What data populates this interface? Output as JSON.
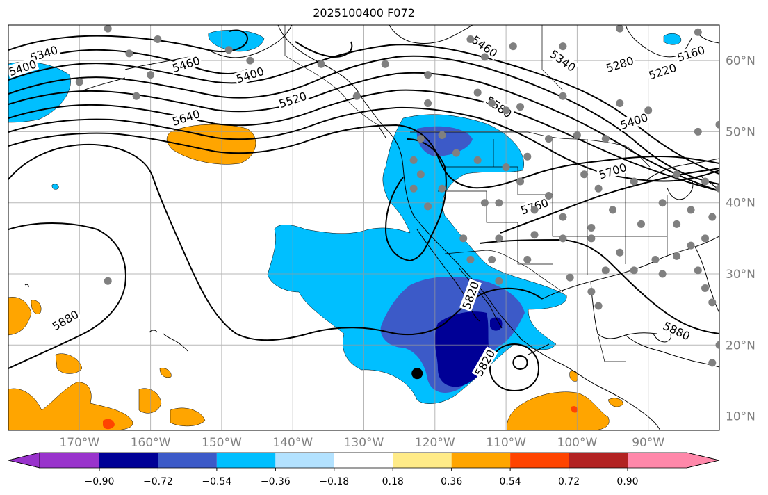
{
  "title": "2025100400 F072",
  "map": {
    "extent": {
      "lon_min": -180,
      "lon_max": -80,
      "lat_min": 8,
      "lat_max": 65
    },
    "projection": "PlateCarree",
    "gridlines": true,
    "lon_ticks": [
      {
        "value": -170,
        "label": "170°W"
      },
      {
        "value": -160,
        "label": "160°W"
      },
      {
        "value": -150,
        "label": "150°W"
      },
      {
        "value": -140,
        "label": "140°W"
      },
      {
        "value": -130,
        "label": "130°W"
      },
      {
        "value": -120,
        "label": "120°W"
      },
      {
        "value": -110,
        "label": "110°W"
      },
      {
        "value": -100,
        "label": "100°W"
      },
      {
        "value": -90,
        "label": "90°W"
      }
    ],
    "lat_ticks": [
      {
        "value": 60,
        "label": "60°N"
      },
      {
        "value": 50,
        "label": "50°N"
      },
      {
        "value": 40,
        "label": "40°N"
      },
      {
        "value": 30,
        "label": "30°N"
      },
      {
        "value": 20,
        "label": "20°N"
      },
      {
        "value": 10,
        "label": "10°N"
      }
    ],
    "contour_labels": [
      {
        "text": "5340",
        "lon": -175,
        "lat": 61
      },
      {
        "text": "5400",
        "lon": -178,
        "lat": 59
      },
      {
        "text": "5460",
        "lon": -155,
        "lat": 59.5
      },
      {
        "text": "5400",
        "lon": -146,
        "lat": 58
      },
      {
        "text": "5520",
        "lon": -140,
        "lat": 54.5
      },
      {
        "text": "5640",
        "lon": -155,
        "lat": 52
      },
      {
        "text": "5460",
        "lon": -113,
        "lat": 62
      },
      {
        "text": "5340",
        "lon": -102,
        "lat": 60
      },
      {
        "text": "5280",
        "lon": -94,
        "lat": 59.5
      },
      {
        "text": "5220",
        "lon": -88,
        "lat": 58.5
      },
      {
        "text": "5160",
        "lon": -84,
        "lat": 61
      },
      {
        "text": "5580",
        "lon": -111,
        "lat": 53.5
      },
      {
        "text": "5400",
        "lon": -92,
        "lat": 51.5
      },
      {
        "text": "5700",
        "lon": -95,
        "lat": 44.5
      },
      {
        "text": "5760",
        "lon": -106,
        "lat": 39.5
      },
      {
        "text": "5880",
        "lon": -172,
        "lat": 23.5
      },
      {
        "text": "5880",
        "lon": -86,
        "lat": 22
      },
      {
        "text": "5820",
        "lon": -113,
        "lat": 17.5
      },
      {
        "text": "5820",
        "lon": -115,
        "lat": 27
      }
    ],
    "station_points": [
      [
        -166,
        64.5
      ],
      [
        -159,
        63
      ],
      [
        -163,
        61
      ],
      [
        -149,
        61.5
      ],
      [
        -146,
        60
      ],
      [
        -160,
        58
      ],
      [
        -170,
        57
      ],
      [
        -162,
        55
      ],
      [
        -136,
        59.5
      ],
      [
        -127,
        59.5
      ],
      [
        -121,
        58
      ],
      [
        -131,
        55
      ],
      [
        -121,
        54
      ],
      [
        -115,
        63
      ],
      [
        -109,
        62
      ],
      [
        -102,
        62
      ],
      [
        -94,
        64.5
      ],
      [
        -83,
        64
      ],
      [
        -113,
        60.5
      ],
      [
        -114,
        55.5
      ],
      [
        -112,
        54
      ],
      [
        -110,
        53
      ],
      [
        -108,
        53.5
      ],
      [
        -104,
        49
      ],
      [
        -102,
        55
      ],
      [
        -100,
        49.5
      ],
      [
        -96,
        49
      ],
      [
        -94,
        54
      ],
      [
        -90,
        53
      ],
      [
        -83,
        50
      ],
      [
        -80,
        51
      ],
      [
        -122,
        49
      ],
      [
        -119,
        49.5
      ],
      [
        -123,
        46
      ],
      [
        -122,
        44
      ],
      [
        -123,
        42
      ],
      [
        -121,
        39.5
      ],
      [
        -119,
        42
      ],
      [
        -117,
        47
      ],
      [
        -114,
        46
      ],
      [
        -110,
        45
      ],
      [
        -107,
        46.5
      ],
      [
        -108,
        43
      ],
      [
        -104,
        41
      ],
      [
        -99,
        44
      ],
      [
        -97,
        42
      ],
      [
        -92,
        43
      ],
      [
        -86,
        44
      ],
      [
        -82,
        43
      ],
      [
        -88,
        40
      ],
      [
        -84,
        39
      ],
      [
        -80,
        42
      ],
      [
        -113,
        40
      ],
      [
        -111,
        40
      ],
      [
        -106,
        39
      ],
      [
        -102,
        38
      ],
      [
        -98,
        36.5
      ],
      [
        -95,
        39
      ],
      [
        -91,
        37
      ],
      [
        -86,
        37
      ],
      [
        -84,
        34
      ],
      [
        -82,
        35
      ],
      [
        -81,
        38
      ],
      [
        -116,
        35
      ],
      [
        -111,
        35
      ],
      [
        -106,
        35.5
      ],
      [
        -102,
        35
      ],
      [
        -98,
        35
      ],
      [
        -94,
        33
      ],
      [
        -89,
        32
      ],
      [
        -86,
        32.5
      ],
      [
        -83,
        30.5
      ],
      [
        -82,
        28
      ],
      [
        -81,
        26
      ],
      [
        -88,
        30
      ],
      [
        -92,
        30.5
      ],
      [
        -96,
        30.5
      ],
      [
        -98,
        27.5
      ],
      [
        -97,
        25.5
      ],
      [
        -101,
        29.5
      ],
      [
        -107,
        32
      ],
      [
        -112,
        32
      ],
      [
        -115,
        32
      ],
      [
        -111,
        29
      ],
      [
        -80,
        20
      ],
      [
        -81,
        17.5
      ],
      [
        -166,
        29
      ]
    ],
    "marker": {
      "lon": -122.5,
      "lat": 16,
      "color": "#000000"
    }
  },
  "colorbar": {
    "tick_labels": [
      "−0.90",
      "−0.72",
      "−0.54",
      "−0.36",
      "−0.18",
      "0.18",
      "0.36",
      "0.54",
      "0.72",
      "0.90"
    ],
    "colors": [
      "#9933cc",
      "#000096",
      "#3c5ac8",
      "#00bfff",
      "#b3e2ff",
      "#ffffff",
      "#ffeb88",
      "#ffa500",
      "#ff4400",
      "#b22222",
      "#ff88aa"
    ]
  }
}
